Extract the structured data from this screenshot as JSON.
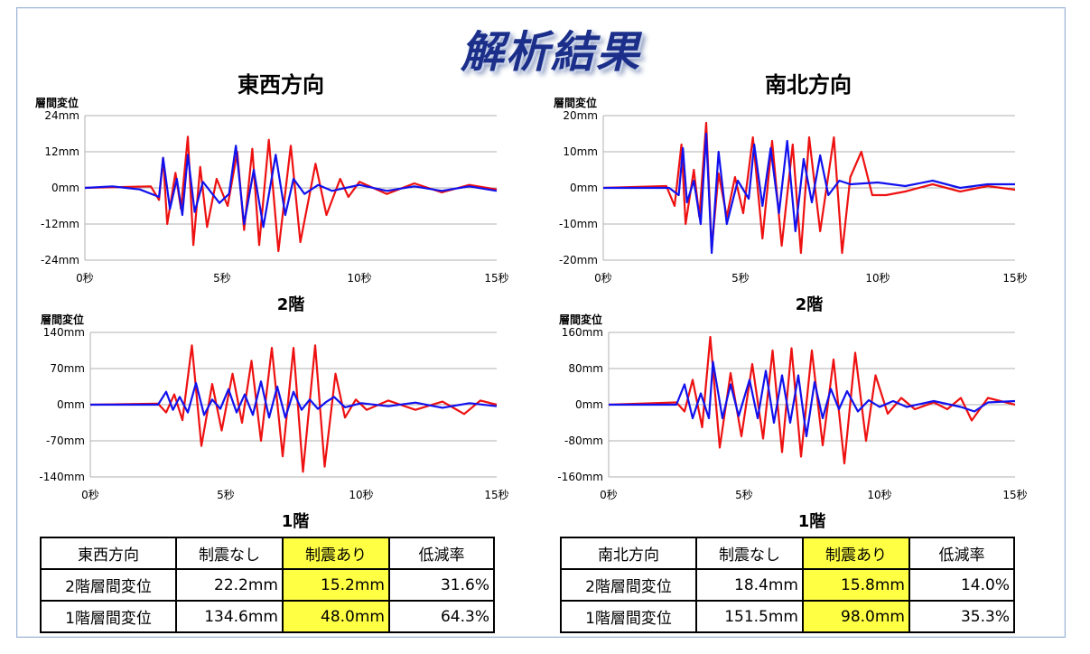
{
  "page_title": "解析結果",
  "colors": {
    "no_damper": "#ee1111",
    "with_damper": "#1111ee",
    "grid": "#b0b0b0",
    "highlight": "#ffff44",
    "title_blue": "#1b2f8a"
  },
  "chart_data": [
    {
      "id": "ew2",
      "type": "line",
      "direction_title": "東西方向",
      "caption": "2階",
      "ylabel": "層間変位",
      "x_ticks": [
        "0秒",
        "5秒",
        "10秒",
        "15秒"
      ],
      "y_ticks": [
        "24mm",
        "12mm",
        "0mm",
        "-12mm",
        "-24mm"
      ],
      "xlim": [
        0,
        15
      ],
      "ylim": [
        -24,
        24
      ],
      "series": [
        {
          "key": "no_damper",
          "points": [
            [
              0,
              0
            ],
            [
              2.4,
              0.5
            ],
            [
              2.7,
              -4
            ],
            [
              2.85,
              10
            ],
            [
              3.0,
              -12
            ],
            [
              3.3,
              5
            ],
            [
              3.5,
              -7
            ],
            [
              3.75,
              17
            ],
            [
              3.95,
              -19
            ],
            [
              4.2,
              7
            ],
            [
              4.45,
              -13
            ],
            [
              4.8,
              3
            ],
            [
              5.2,
              -6
            ],
            [
              5.55,
              12
            ],
            [
              5.8,
              -14
            ],
            [
              6.1,
              13
            ],
            [
              6.35,
              -19
            ],
            [
              6.7,
              16
            ],
            [
              7.05,
              -21
            ],
            [
              7.5,
              14
            ],
            [
              7.85,
              -18
            ],
            [
              8.4,
              8
            ],
            [
              8.8,
              -9
            ],
            [
              9.3,
              3
            ],
            [
              9.6,
              -3
            ],
            [
              10,
              2
            ],
            [
              11,
              -2
            ],
            [
              12,
              1.5
            ],
            [
              13,
              -1.5
            ],
            [
              14,
              1
            ],
            [
              15,
              -0.5
            ]
          ]
        },
        {
          "key": "with_damper",
          "points": [
            [
              0,
              0
            ],
            [
              1,
              0.5
            ],
            [
              2,
              -0.5
            ],
            [
              2.7,
              -3
            ],
            [
              2.85,
              10
            ],
            [
              3.1,
              -7
            ],
            [
              3.35,
              3
            ],
            [
              3.55,
              -9
            ],
            [
              3.75,
              11
            ],
            [
              4.0,
              -8
            ],
            [
              4.3,
              2
            ],
            [
              4.9,
              -5
            ],
            [
              5.25,
              -2
            ],
            [
              5.5,
              14
            ],
            [
              5.8,
              -12
            ],
            [
              6.15,
              6
            ],
            [
              6.5,
              -13
            ],
            [
              6.95,
              11
            ],
            [
              7.3,
              -9
            ],
            [
              7.6,
              3
            ],
            [
              8.0,
              -2
            ],
            [
              8.5,
              1
            ],
            [
              9,
              -1
            ],
            [
              10,
              1
            ],
            [
              11,
              -1
            ],
            [
              12,
              0.5
            ],
            [
              13,
              -1
            ],
            [
              14,
              0.5
            ],
            [
              15,
              -1
            ]
          ]
        }
      ]
    },
    {
      "id": "ew1",
      "type": "line",
      "caption": "1階",
      "ylabel": "層間変位",
      "x_ticks": [
        "0秒",
        "5秒",
        "10秒",
        "15秒"
      ],
      "y_ticks": [
        "140mm",
        "70mm",
        "0mm",
        "-70mm",
        "-140mm"
      ],
      "xlim": [
        0,
        15
      ],
      "ylim": [
        -140,
        140
      ],
      "series": [
        {
          "key": "no_damper",
          "points": [
            [
              0,
              0
            ],
            [
              2.5,
              2
            ],
            [
              2.8,
              -15
            ],
            [
              3.1,
              20
            ],
            [
              3.4,
              -30
            ],
            [
              3.75,
              115
            ],
            [
              4.1,
              -80
            ],
            [
              4.5,
              40
            ],
            [
              4.85,
              -50
            ],
            [
              5.25,
              60
            ],
            [
              5.6,
              -35
            ],
            [
              5.95,
              85
            ],
            [
              6.3,
              -70
            ],
            [
              6.7,
              110
            ],
            [
              7.1,
              -100
            ],
            [
              7.5,
              110
            ],
            [
              7.85,
              -130
            ],
            [
              8.3,
              115
            ],
            [
              8.65,
              -120
            ],
            [
              9.05,
              60
            ],
            [
              9.4,
              -25
            ],
            [
              9.8,
              10
            ],
            [
              10.2,
              -10
            ],
            [
              11,
              8
            ],
            [
              12,
              -10
            ],
            [
              13,
              6
            ],
            [
              13.8,
              -18
            ],
            [
              14.4,
              8
            ],
            [
              15,
              0
            ]
          ]
        },
        {
          "key": "with_damper",
          "points": [
            [
              0,
              0
            ],
            [
              2.5,
              0
            ],
            [
              2.8,
              25
            ],
            [
              3.05,
              -10
            ],
            [
              3.3,
              15
            ],
            [
              3.6,
              -15
            ],
            [
              3.9,
              42
            ],
            [
              4.2,
              -20
            ],
            [
              4.5,
              10
            ],
            [
              4.8,
              -8
            ],
            [
              5.1,
              30
            ],
            [
              5.4,
              -15
            ],
            [
              5.7,
              20
            ],
            [
              6.0,
              -20
            ],
            [
              6.3,
              45
            ],
            [
              6.6,
              -25
            ],
            [
              6.9,
              35
            ],
            [
              7.2,
              -25
            ],
            [
              7.5,
              25
            ],
            [
              7.8,
              -10
            ],
            [
              8.1,
              10
            ],
            [
              8.4,
              -8
            ],
            [
              8.7,
              5
            ],
            [
              9.0,
              15
            ],
            [
              9.4,
              -5
            ],
            [
              10,
              3
            ],
            [
              11,
              -3
            ],
            [
              12,
              4
            ],
            [
              13,
              -6
            ],
            [
              14,
              3
            ],
            [
              15,
              -3
            ]
          ]
        }
      ]
    },
    {
      "id": "ns2",
      "type": "line",
      "direction_title": "南北方向",
      "caption": "2階",
      "ylabel": "層間変位",
      "x_ticks": [
        "0秒",
        "5秒",
        "10秒",
        "15秒"
      ],
      "y_ticks": [
        "20mm",
        "10mm",
        "0mm",
        "-10mm",
        "-20mm"
      ],
      "xlim": [
        0,
        15
      ],
      "ylim": [
        -20,
        20
      ],
      "series": [
        {
          "key": "no_damper",
          "points": [
            [
              0,
              0
            ],
            [
              2.3,
              0.5
            ],
            [
              2.6,
              -5
            ],
            [
              2.85,
              12
            ],
            [
              3.0,
              -10
            ],
            [
              3.3,
              5
            ],
            [
              3.5,
              -8
            ],
            [
              3.75,
              18
            ],
            [
              3.95,
              -17
            ],
            [
              4.2,
              4
            ],
            [
              4.5,
              -8
            ],
            [
              4.8,
              3
            ],
            [
              5.1,
              -7
            ],
            [
              5.45,
              14
            ],
            [
              5.8,
              -14
            ],
            [
              6.15,
              13
            ],
            [
              6.5,
              -16
            ],
            [
              6.9,
              12
            ],
            [
              7.2,
              -18
            ],
            [
              7.5,
              14
            ],
            [
              7.9,
              -12
            ],
            [
              8.4,
              14
            ],
            [
              8.7,
              -18
            ],
            [
              9.0,
              3
            ],
            [
              9.4,
              10
            ],
            [
              9.8,
              -2
            ],
            [
              10.3,
              -2
            ],
            [
              11,
              -1
            ],
            [
              12,
              1
            ],
            [
              13,
              -1
            ],
            [
              14,
              0.5
            ],
            [
              15,
              -0.5
            ]
          ]
        },
        {
          "key": "with_damper",
          "points": [
            [
              0,
              0
            ],
            [
              2.4,
              0
            ],
            [
              2.75,
              -2
            ],
            [
              2.9,
              11
            ],
            [
              3.05,
              -4
            ],
            [
              3.3,
              2
            ],
            [
              3.55,
              -10
            ],
            [
              3.75,
              15
            ],
            [
              3.95,
              -18
            ],
            [
              4.2,
              10
            ],
            [
              4.5,
              -10
            ],
            [
              4.9,
              2
            ],
            [
              5.3,
              -3
            ],
            [
              5.5,
              12
            ],
            [
              5.8,
              -5
            ],
            [
              6.1,
              11
            ],
            [
              6.4,
              -7
            ],
            [
              6.7,
              13
            ],
            [
              7.0,
              -12
            ],
            [
              7.3,
              8
            ],
            [
              7.6,
              -4
            ],
            [
              7.9,
              9
            ],
            [
              8.2,
              -2
            ],
            [
              8.6,
              2
            ],
            [
              9,
              1
            ],
            [
              10,
              1.5
            ],
            [
              11,
              0.5
            ],
            [
              12,
              2
            ],
            [
              13,
              0
            ],
            [
              14,
              1
            ],
            [
              15,
              1
            ]
          ]
        }
      ]
    },
    {
      "id": "ns1",
      "type": "line",
      "caption": "1階",
      "ylabel": "層間変位",
      "x_ticks": [
        "0秒",
        "5秒",
        "10秒",
        "15秒"
      ],
      "y_ticks": [
        "160mm",
        "80mm",
        "0mm",
        "-80mm",
        "-160mm"
      ],
      "xlim": [
        0,
        15
      ],
      "ylim": [
        -160,
        160
      ],
      "series": [
        {
          "key": "no_damper",
          "points": [
            [
              0,
              0
            ],
            [
              2.5,
              5
            ],
            [
              2.8,
              -15
            ],
            [
              3.1,
              55
            ],
            [
              3.45,
              -50
            ],
            [
              3.75,
              150
            ],
            [
              4.1,
              -95
            ],
            [
              4.5,
              70
            ],
            [
              4.9,
              -70
            ],
            [
              5.3,
              90
            ],
            [
              5.7,
              -75
            ],
            [
              6.05,
              120
            ],
            [
              6.4,
              -105
            ],
            [
              6.75,
              125
            ],
            [
              7.1,
              -115
            ],
            [
              7.5,
              120
            ],
            [
              7.9,
              -90
            ],
            [
              8.3,
              100
            ],
            [
              8.7,
              -130
            ],
            [
              9.1,
              115
            ],
            [
              9.5,
              -80
            ],
            [
              9.85,
              65
            ],
            [
              10.3,
              -20
            ],
            [
              10.8,
              15
            ],
            [
              11.3,
              -10
            ],
            [
              12,
              5
            ],
            [
              12.5,
              -10
            ],
            [
              13,
              15
            ],
            [
              13.4,
              -35
            ],
            [
              14,
              15
            ],
            [
              15,
              0
            ]
          ]
        },
        {
          "key": "with_damper",
          "points": [
            [
              0,
              0
            ],
            [
              2.5,
              0
            ],
            [
              2.8,
              45
            ],
            [
              3.1,
              -30
            ],
            [
              3.4,
              25
            ],
            [
              3.7,
              -30
            ],
            [
              3.85,
              95
            ],
            [
              4.2,
              -30
            ],
            [
              4.5,
              45
            ],
            [
              4.8,
              -25
            ],
            [
              5.2,
              55
            ],
            [
              5.5,
              -30
            ],
            [
              5.8,
              75
            ],
            [
              6.1,
              -40
            ],
            [
              6.4,
              65
            ],
            [
              6.7,
              -40
            ],
            [
              7.0,
              65
            ],
            [
              7.3,
              -70
            ],
            [
              7.6,
              50
            ],
            [
              7.9,
              -30
            ],
            [
              8.2,
              35
            ],
            [
              8.5,
              -10
            ],
            [
              8.8,
              30
            ],
            [
              9.2,
              -15
            ],
            [
              9.6,
              10
            ],
            [
              10,
              -5
            ],
            [
              10.5,
              8
            ],
            [
              11,
              -5
            ],
            [
              12,
              8
            ],
            [
              13,
              -5
            ],
            [
              13.5,
              -15
            ],
            [
              14,
              5
            ],
            [
              15,
              8
            ]
          ]
        }
      ]
    }
  ],
  "tables": [
    {
      "header": [
        "東西方向",
        "制震なし",
        "制震あり",
        "低減率"
      ],
      "rows": [
        [
          "2階層間変位",
          "22.2mm",
          "15.2mm",
          "31.6%"
        ],
        [
          "1階層間変位",
          "134.6mm",
          "48.0mm",
          "64.3%"
        ]
      ]
    },
    {
      "header": [
        "南北方向",
        "制震なし",
        "制震あり",
        "低減率"
      ],
      "rows": [
        [
          "2階層間変位",
          "18.4mm",
          "15.8mm",
          "14.0%"
        ],
        [
          "1階層間変位",
          "151.5mm",
          "98.0mm",
          "35.3%"
        ]
      ]
    }
  ]
}
